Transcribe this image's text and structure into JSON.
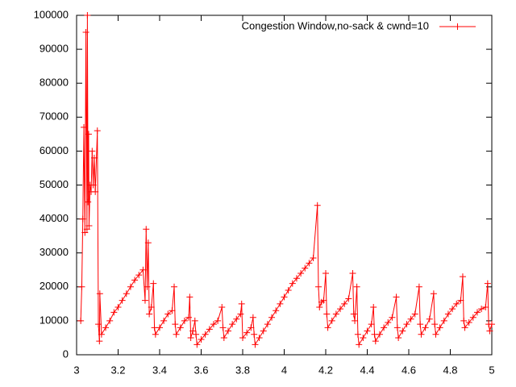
{
  "chart_data": {
    "type": "line",
    "x": [
      3.02,
      3.025,
      3.03,
      3.035,
      3.04,
      3.045,
      3.05,
      3.052,
      3.055,
      3.058,
      3.06,
      3.065,
      3.07,
      3.075,
      3.08,
      3.085,
      3.09,
      3.1,
      3.105,
      3.11,
      3.112,
      3.12,
      3.14,
      3.16,
      3.18,
      3.2,
      3.22,
      3.24,
      3.26,
      3.28,
      3.3,
      3.32,
      3.33,
      3.335,
      3.34,
      3.345,
      3.35,
      3.36,
      3.37,
      3.375,
      3.38,
      3.4,
      3.42,
      3.44,
      3.46,
      3.47,
      3.475,
      3.48,
      3.5,
      3.52,
      3.54,
      3.545,
      3.55,
      3.56,
      3.57,
      3.575,
      3.58,
      3.6,
      3.62,
      3.64,
      3.66,
      3.68,
      3.7,
      3.705,
      3.71,
      3.73,
      3.75,
      3.77,
      3.79,
      3.795,
      3.8,
      3.82,
      3.84,
      3.85,
      3.855,
      3.86,
      3.88,
      3.9,
      3.92,
      3.94,
      3.96,
      3.98,
      4,
      4.02,
      4.04,
      4.06,
      4.08,
      4.1,
      4.12,
      4.14,
      4.16,
      4.165,
      4.17,
      4.18,
      4.19,
      4.2,
      4.205,
      4.21,
      4.23,
      4.25,
      4.27,
      4.29,
      4.31,
      4.33,
      4.335,
      4.34,
      4.35,
      4.355,
      4.36,
      4.38,
      4.4,
      4.42,
      4.43,
      4.435,
      4.44,
      4.46,
      4.48,
      4.5,
      4.52,
      4.54,
      4.545,
      4.55,
      4.57,
      4.59,
      4.61,
      4.63,
      4.65,
      4.655,
      4.66,
      4.68,
      4.7,
      4.72,
      4.725,
      4.73,
      4.75,
      4.77,
      4.79,
      4.81,
      4.83,
      4.85,
      4.86,
      4.865,
      4.87,
      4.89,
      4.91,
      4.93,
      4.95,
      4.97,
      4.98,
      4.985,
      4.99,
      5
    ],
    "series": [
      {
        "name": "Congestion Window,no-sack & cwnd=10",
        "color": "#ff0000",
        "values": [
          10000,
          20000,
          40000,
          67000,
          36000,
          95000,
          37000,
          100000,
          45000,
          65000,
          38000,
          50000,
          48000,
          60000,
          50000,
          58000,
          48000,
          66000,
          9000,
          4000,
          18000,
          6000,
          8000,
          10000,
          12500,
          14000,
          16000,
          18000,
          20000,
          22000,
          23500,
          25000,
          16000,
          37000,
          20000,
          33000,
          12000,
          14000,
          21000,
          8000,
          6000,
          8000,
          10000,
          12000,
          13000,
          20000,
          9000,
          6000,
          8000,
          10000,
          11000,
          17000,
          5000,
          7000,
          10000,
          6000,
          3000,
          4500,
          6000,
          7500,
          9000,
          10000,
          14000,
          8000,
          5000,
          7000,
          9000,
          10500,
          12000,
          15000,
          5000,
          6500,
          8000,
          11000,
          6000,
          3000,
          5000,
          7000,
          9000,
          11000,
          13000,
          15000,
          17000,
          19000,
          21000,
          22500,
          24000,
          25500,
          27000,
          28500,
          44000,
          20000,
          14000,
          15500,
          16000,
          24000,
          12000,
          8000,
          10000,
          12000,
          13500,
          15000,
          16500,
          24000,
          12000,
          10000,
          20000,
          6000,
          3000,
          5000,
          7000,
          9000,
          14000,
          6000,
          4000,
          6000,
          8000,
          9500,
          11000,
          17000,
          8000,
          5000,
          7000,
          9000,
          10500,
          12000,
          20000,
          9000,
          6000,
          8000,
          10500,
          18000,
          9000,
          6000,
          8000,
          10000,
          12000,
          13500,
          15000,
          16000,
          23000,
          10000,
          8000,
          9500,
          11000,
          12500,
          13500,
          14000,
          21000,
          9000,
          7000,
          9000
        ]
      }
    ],
    "xlim": [
      3,
      5
    ],
    "xticks": [
      3,
      3.2,
      3.4,
      3.6,
      3.8,
      4,
      4.2,
      4.4,
      4.6,
      4.8,
      5
    ],
    "ylim": [
      0,
      100000
    ],
    "yticks": [
      0,
      10000,
      20000,
      30000,
      40000,
      50000,
      60000,
      70000,
      80000,
      90000,
      100000
    ],
    "legend": "top-right"
  }
}
